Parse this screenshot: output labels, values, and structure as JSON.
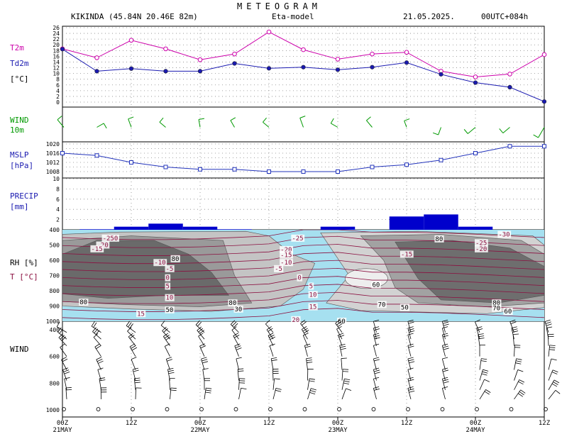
{
  "header": {
    "title": "METEOGRAM",
    "station": "KIKINDA (45.84N 20.46E  82m)",
    "model": "Eta-model",
    "date": "21.05.2025.",
    "run": "00UTC+084h"
  },
  "panels": {
    "temp": {
      "label1": "T2m",
      "label2": "Td2m",
      "label3": "[°C]"
    },
    "wind10": {
      "label1": "WIND",
      "label2": "10m"
    },
    "mslp": {
      "label1": "MSLP",
      "label2": "[hPa]"
    },
    "precip": {
      "label1": "PRECIP",
      "label2": "[mm]"
    },
    "rh": {
      "label1": "RH [%]",
      "label2": "T [°C]"
    },
    "windprof": {
      "label1": "WIND"
    }
  },
  "colors": {
    "t2m": "#cc00aa",
    "td2m": "#1a1ab0",
    "wind": "#009900",
    "mslp": "#2233bb",
    "precip": "#0000cc",
    "temp_iso": "#8b1040",
    "humid": "#a6e0f0"
  },
  "chart_data": [
    {
      "type": "line",
      "name": "temperature",
      "x_hours": [
        0,
        6,
        12,
        18,
        24,
        30,
        36,
        42,
        48,
        54,
        60,
        66,
        72,
        78,
        84
      ],
      "ylim": [
        0,
        26
      ],
      "yticks": [
        "0",
        "2",
        "4",
        "6",
        "8",
        "10",
        "12",
        "14",
        "16",
        "18",
        "20",
        "22",
        "24",
        "26"
      ],
      "series": [
        {
          "name": "T2m",
          "values": [
            18.6,
            15.5,
            21.6,
            18.6,
            14.8,
            16.8,
            24.5,
            18.3,
            15.0,
            16.8,
            17.4,
            10.8,
            8.8,
            9.8,
            16.6
          ]
        },
        {
          "name": "Td2m",
          "values": [
            18.5,
            10.8,
            11.7,
            10.8,
            10.8,
            13.5,
            11.8,
            12.2,
            11.3,
            12.2,
            13.8,
            9.7,
            6.8,
            5.2,
            0.2
          ]
        }
      ]
    },
    {
      "type": "scatter",
      "name": "wind10m",
      "x_hours": [
        0,
        6,
        12,
        18,
        24,
        30,
        36,
        42,
        48,
        54,
        60,
        66,
        72,
        78,
        84
      ]
    },
    {
      "type": "line",
      "name": "mslp",
      "x_hours": [
        0,
        6,
        12,
        18,
        24,
        30,
        36,
        42,
        48,
        54,
        60,
        66,
        72,
        78,
        84
      ],
      "ylim": [
        1008,
        1020
      ],
      "yticks": [
        "1008",
        "1012",
        "1016",
        "1020"
      ],
      "series": [
        {
          "name": "MSLP",
          "values": [
            1016,
            1015,
            1012,
            1010,
            1009,
            1009,
            1008,
            1008,
            1008,
            1010,
            1011,
            1013,
            1016,
            1019,
            1019
          ]
        }
      ]
    },
    {
      "type": "bar",
      "name": "precip",
      "ylim": [
        0,
        10
      ],
      "yticks": [
        "2",
        "4",
        "6",
        "8",
        "10"
      ],
      "bars": [
        {
          "from": 3,
          "to": 9,
          "value": 0.1
        },
        {
          "from": 9,
          "to": 15,
          "value": 0.6
        },
        {
          "from": 15,
          "to": 21,
          "value": 1.2
        },
        {
          "from": 21,
          "to": 27,
          "value": 0.6
        },
        {
          "from": 27,
          "to": 33,
          "value": 0.1
        },
        {
          "from": 45,
          "to": 51,
          "value": 0.6
        },
        {
          "from": 57,
          "to": 63,
          "value": 2.6
        },
        {
          "from": 63,
          "to": 69,
          "value": 3.0
        },
        {
          "from": 69,
          "to": 75,
          "value": 0.6
        }
      ]
    },
    {
      "type": "heatmap",
      "name": "rh_temperature_cross_section",
      "y_levels_hpa": [
        400,
        500,
        600,
        700,
        800,
        900,
        1000
      ],
      "rh_contours": [
        "30",
        "50",
        "60",
        "70",
        "80",
        "90"
      ],
      "temp_contours": [
        "-30",
        "-25",
        "-20",
        "-15",
        "-10",
        "-5",
        "0",
        "5",
        "10",
        "15",
        "20"
      ],
      "labels": [
        {
          "text": "-250",
          "h": 7,
          "p": 455,
          "kind": "T"
        },
        {
          "text": "-20",
          "h": 6,
          "p": 500,
          "kind": "T"
        },
        {
          "text": "-15",
          "h": 5,
          "p": 525,
          "kind": "T"
        },
        {
          "text": "-10",
          "h": 16,
          "p": 615,
          "kind": "T"
        },
        {
          "text": "-5",
          "h": 18,
          "p": 655,
          "kind": "T"
        },
        {
          "text": "0",
          "h": 18,
          "p": 715,
          "kind": "T"
        },
        {
          "text": "5",
          "h": 18,
          "p": 770,
          "kind": "T"
        },
        {
          "text": "10",
          "h": 18,
          "p": 845,
          "kind": "T"
        },
        {
          "text": "15",
          "h": 13,
          "p": 950,
          "kind": "T"
        },
        {
          "text": "80",
          "h": 3,
          "p": 875,
          "kind": "RH"
        },
        {
          "text": "50",
          "h": 18,
          "p": 925,
          "kind": "RH"
        },
        {
          "text": "80",
          "h": 19,
          "p": 590,
          "kind": "RH"
        },
        {
          "text": "80",
          "h": 29,
          "p": 880,
          "kind": "RH"
        },
        {
          "text": "30",
          "h": 30,
          "p": 920,
          "kind": "RH"
        },
        {
          "text": "-25",
          "h": 40,
          "p": 455,
          "kind": "T"
        },
        {
          "text": "-20",
          "h": 38,
          "p": 530,
          "kind": "T"
        },
        {
          "text": "-15",
          "h": 38,
          "p": 565,
          "kind": "T"
        },
        {
          "text": "-10",
          "h": 38,
          "p": 615,
          "kind": "T"
        },
        {
          "text": "-5",
          "h": 37,
          "p": 655,
          "kind": "T"
        },
        {
          "text": "0",
          "h": 41,
          "p": 715,
          "kind": "T"
        },
        {
          "text": "5",
          "h": 43,
          "p": 770,
          "kind": "T"
        },
        {
          "text": "10",
          "h": 43,
          "p": 825,
          "kind": "T"
        },
        {
          "text": "15",
          "h": 43,
          "p": 905,
          "kind": "T"
        },
        {
          "text": "20",
          "h": 40,
          "p": 990,
          "kind": "T"
        },
        {
          "text": "60",
          "h": 48,
          "p": 1000,
          "kind": "RH"
        },
        {
          "text": "60",
          "h": 54,
          "p": 760,
          "kind": "RH"
        },
        {
          "text": "70",
          "h": 55,
          "p": 890,
          "kind": "RH"
        },
        {
          "text": "50",
          "h": 59,
          "p": 910,
          "kind": "RH"
        },
        {
          "text": "-15",
          "h": 59,
          "p": 560,
          "kind": "T"
        },
        {
          "text": "80",
          "h": 65,
          "p": 460,
          "kind": "RH"
        },
        {
          "text": "-30",
          "h": 76,
          "p": 430,
          "kind": "T"
        },
        {
          "text": "-25",
          "h": 72,
          "p": 485,
          "kind": "T"
        },
        {
          "text": "-20",
          "h": 72,
          "p": 525,
          "kind": "T"
        },
        {
          "text": "80",
          "h": 75,
          "p": 880,
          "kind": "RH"
        },
        {
          "text": "70",
          "h": 75,
          "p": 915,
          "kind": "RH"
        },
        {
          "text": "60",
          "h": 77,
          "p": 935,
          "kind": "RH"
        }
      ]
    },
    {
      "type": "scatter",
      "name": "wind_profile",
      "y_levels_hpa": [
        "400",
        "600",
        "800",
        "1000"
      ],
      "x_hours": [
        0,
        6,
        12,
        18,
        24,
        30,
        36,
        42,
        48,
        54,
        60,
        66,
        72,
        78,
        84
      ]
    }
  ],
  "x_axis": {
    "ticks": [
      {
        "h": 0,
        "label": "00Z",
        "day": "21MAY"
      },
      {
        "h": 12,
        "label": "12Z",
        "day": ""
      },
      {
        "h": 24,
        "label": "00Z",
        "day": "22MAY"
      },
      {
        "h": 36,
        "label": "12Z",
        "day": ""
      },
      {
        "h": 48,
        "label": "00Z",
        "day": "23MAY"
      },
      {
        "h": 60,
        "label": "12Z",
        "day": ""
      },
      {
        "h": 72,
        "label": "00Z",
        "day": "24MAY"
      },
      {
        "h": 84,
        "label": "12Z",
        "day": ""
      }
    ]
  }
}
